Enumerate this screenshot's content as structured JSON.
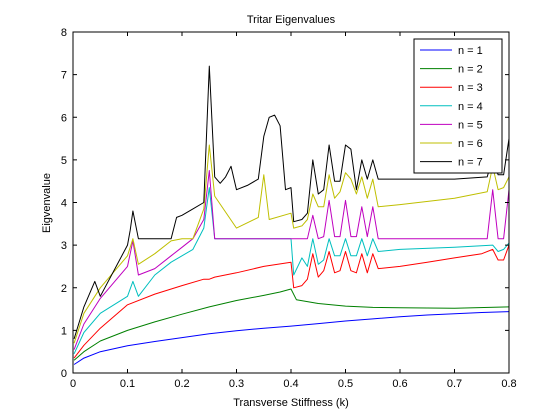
{
  "chart_data": {
    "type": "line",
    "title": "Tritar Eigenvalues",
    "xlabel": "Transverse Stiffness (k)",
    "ylabel": "Eigvenvalue",
    "xlim": [
      0,
      0.8
    ],
    "ylim": [
      0,
      8
    ],
    "xticks": [
      0,
      0.1,
      0.2,
      0.3,
      0.4,
      0.5,
      0.6,
      0.7,
      0.8
    ],
    "xtick_labels": [
      "0",
      "0.1",
      "0.2",
      "0.3",
      "0.4",
      "0.5",
      "0.6",
      "0.7",
      "0.8"
    ],
    "yticks": [
      0,
      1,
      2,
      3,
      4,
      5,
      6,
      7,
      8
    ],
    "ytick_labels": [
      "0",
      "1",
      "2",
      "3",
      "4",
      "5",
      "6",
      "7",
      "8"
    ],
    "grid": false,
    "legend_position": "top-right",
    "series": [
      {
        "name": "n = 1",
        "color": "#0000ff",
        "x": [
          0.002,
          0.02,
          0.05,
          0.1,
          0.15,
          0.2,
          0.25,
          0.3,
          0.35,
          0.4,
          0.45,
          0.5,
          0.55,
          0.6,
          0.65,
          0.7,
          0.75,
          0.8
        ],
        "y": [
          0.2,
          0.35,
          0.5,
          0.64,
          0.74,
          0.83,
          0.92,
          0.99,
          1.05,
          1.1,
          1.16,
          1.22,
          1.27,
          1.32,
          1.36,
          1.39,
          1.42,
          1.44
        ]
      },
      {
        "name": "n = 2",
        "color": "#008000",
        "x": [
          0.002,
          0.02,
          0.05,
          0.1,
          0.15,
          0.2,
          0.25,
          0.3,
          0.35,
          0.38,
          0.4,
          0.41,
          0.45,
          0.5,
          0.55,
          0.6,
          0.7,
          0.8
        ],
        "y": [
          0.3,
          0.5,
          0.75,
          1.0,
          1.2,
          1.38,
          1.55,
          1.7,
          1.82,
          1.9,
          1.97,
          1.72,
          1.63,
          1.57,
          1.54,
          1.53,
          1.52,
          1.55
        ]
      },
      {
        "name": "n = 3",
        "color": "#ff0000",
        "x": [
          0.002,
          0.02,
          0.05,
          0.1,
          0.15,
          0.2,
          0.24,
          0.25,
          0.26,
          0.3,
          0.35,
          0.4,
          0.405,
          0.42,
          0.43,
          0.44,
          0.45,
          0.46,
          0.47,
          0.48,
          0.49,
          0.5,
          0.51,
          0.52,
          0.53,
          0.54,
          0.55,
          0.56,
          0.6,
          0.65,
          0.7,
          0.75,
          0.77,
          0.78,
          0.79,
          0.8
        ],
        "y": [
          0.35,
          0.65,
          1.05,
          1.6,
          1.85,
          2.05,
          2.2,
          2.2,
          2.25,
          2.35,
          2.5,
          2.6,
          2.0,
          2.05,
          2.2,
          2.8,
          2.25,
          2.4,
          2.85,
          2.35,
          2.4,
          2.85,
          2.4,
          2.35,
          2.8,
          2.35,
          2.8,
          2.45,
          2.5,
          2.6,
          2.7,
          2.8,
          2.9,
          2.65,
          2.65,
          3.0
        ]
      },
      {
        "name": "n = 4",
        "color": "#00bfbf",
        "x": [
          0.002,
          0.02,
          0.05,
          0.1,
          0.11,
          0.12,
          0.15,
          0.18,
          0.2,
          0.22,
          0.24,
          0.25,
          0.26,
          0.3,
          0.35,
          0.4,
          0.405,
          0.42,
          0.43,
          0.44,
          0.45,
          0.46,
          0.47,
          0.48,
          0.49,
          0.5,
          0.51,
          0.52,
          0.53,
          0.54,
          0.55,
          0.56,
          0.6,
          0.7,
          0.77,
          0.78,
          0.79,
          0.8
        ],
        "y": [
          0.45,
          0.95,
          1.4,
          1.8,
          2.15,
          1.8,
          2.3,
          2.6,
          2.75,
          2.9,
          3.4,
          4.35,
          3.15,
          3.15,
          3.15,
          3.15,
          2.3,
          2.7,
          2.5,
          3.15,
          2.55,
          2.65,
          3.15,
          2.75,
          2.75,
          3.15,
          2.75,
          2.75,
          3.15,
          2.75,
          3.15,
          2.85,
          2.9,
          2.95,
          3.0,
          2.85,
          2.9,
          3.05
        ]
      },
      {
        "name": "n = 5",
        "color": "#bf00bf",
        "x": [
          0.002,
          0.02,
          0.05,
          0.1,
          0.11,
          0.12,
          0.15,
          0.18,
          0.2,
          0.22,
          0.24,
          0.25,
          0.26,
          0.3,
          0.35,
          0.4,
          0.405,
          0.42,
          0.43,
          0.44,
          0.45,
          0.46,
          0.47,
          0.48,
          0.49,
          0.5,
          0.51,
          0.52,
          0.53,
          0.54,
          0.55,
          0.56,
          0.6,
          0.7,
          0.76,
          0.77,
          0.78,
          0.79,
          0.8
        ],
        "y": [
          0.55,
          1.15,
          1.75,
          2.5,
          3.1,
          2.3,
          2.45,
          2.75,
          2.95,
          3.15,
          3.6,
          4.75,
          3.15,
          3.15,
          3.15,
          3.15,
          3.15,
          3.15,
          3.15,
          3.7,
          3.15,
          3.2,
          4.05,
          3.2,
          3.2,
          4.05,
          3.2,
          3.2,
          3.9,
          3.2,
          3.9,
          3.15,
          3.15,
          3.15,
          3.15,
          4.3,
          3.15,
          3.15,
          4.3
        ]
      },
      {
        "name": "n = 6",
        "color": "#bfbf00",
        "x": [
          0.002,
          0.02,
          0.05,
          0.1,
          0.11,
          0.12,
          0.15,
          0.18,
          0.2,
          0.22,
          0.24,
          0.25,
          0.26,
          0.3,
          0.34,
          0.35,
          0.36,
          0.4,
          0.405,
          0.42,
          0.43,
          0.44,
          0.45,
          0.46,
          0.47,
          0.48,
          0.49,
          0.5,
          0.51,
          0.52,
          0.53,
          0.54,
          0.55,
          0.56,
          0.6,
          0.7,
          0.76,
          0.77,
          0.78,
          0.79,
          0.8
        ],
        "y": [
          0.7,
          1.4,
          2.0,
          2.75,
          3.15,
          2.55,
          2.8,
          3.1,
          3.15,
          3.15,
          3.85,
          5.35,
          4.15,
          3.4,
          3.65,
          4.65,
          3.6,
          3.75,
          3.4,
          3.45,
          3.6,
          4.2,
          3.9,
          3.9,
          4.65,
          4.1,
          4.25,
          4.7,
          4.55,
          4.2,
          4.6,
          4.1,
          4.55,
          3.9,
          3.95,
          4.1,
          4.25,
          4.85,
          4.3,
          4.35,
          4.6
        ]
      },
      {
        "name": "n = 7",
        "color": "#000000",
        "x": [
          0.002,
          0.02,
          0.04,
          0.05,
          0.1,
          0.105,
          0.11,
          0.12,
          0.15,
          0.18,
          0.19,
          0.2,
          0.22,
          0.24,
          0.25,
          0.26,
          0.27,
          0.28,
          0.29,
          0.3,
          0.32,
          0.34,
          0.35,
          0.36,
          0.37,
          0.38,
          0.39,
          0.4,
          0.405,
          0.42,
          0.43,
          0.44,
          0.45,
          0.46,
          0.47,
          0.48,
          0.49,
          0.5,
          0.51,
          0.52,
          0.53,
          0.54,
          0.55,
          0.56,
          0.6,
          0.7,
          0.76,
          0.77,
          0.78,
          0.79,
          0.8
        ],
        "y": [
          0.8,
          1.55,
          2.15,
          1.8,
          3.0,
          3.35,
          3.8,
          3.15,
          3.15,
          3.15,
          3.65,
          3.7,
          3.85,
          4.0,
          7.2,
          4.6,
          4.45,
          4.6,
          4.85,
          4.3,
          4.4,
          4.55,
          5.55,
          6.0,
          6.05,
          5.8,
          4.3,
          4.35,
          3.55,
          3.6,
          3.75,
          5.0,
          4.2,
          4.3,
          5.35,
          4.5,
          4.5,
          5.35,
          5.25,
          4.3,
          5.0,
          4.55,
          5.0,
          4.55,
          4.55,
          4.55,
          4.6,
          5.05,
          4.65,
          4.65,
          5.5
        ]
      }
    ]
  }
}
